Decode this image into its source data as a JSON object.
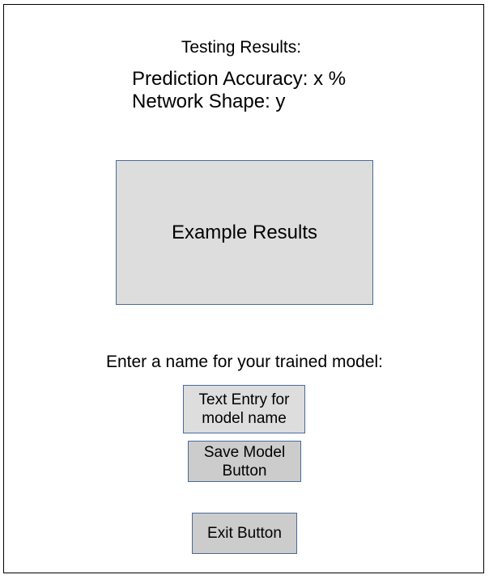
{
  "header": {
    "title": "Testing Results:"
  },
  "metrics": {
    "accuracy": "Prediction Accuracy: x %",
    "shape": "Network Shape: y"
  },
  "example_results": {
    "label": "Example Results"
  },
  "save_section": {
    "prompt": "Enter a  name for your trained model:",
    "text_entry_label": "Text Entry for model name",
    "save_button_label": "Save Model Button"
  },
  "exit_button_label": "Exit Button"
}
